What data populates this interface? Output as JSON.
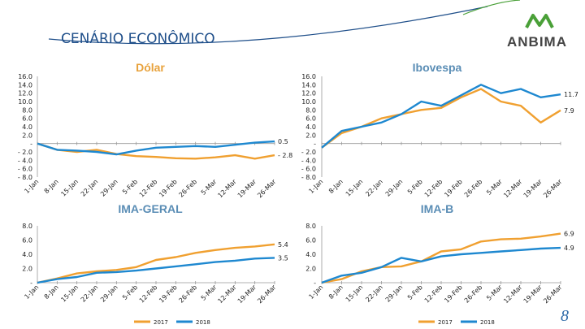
{
  "header": {
    "title": "CENÁRIO ECONÔMICO",
    "logo_text": "ANBIMA",
    "page_number": "8"
  },
  "legend": {
    "label_2017": "2017",
    "label_2018": "2018"
  },
  "colors": {
    "y2017": "#f0a030",
    "y2018": "#1e88d0",
    "title": "#1f4f8a",
    "accent": "#4aa038"
  },
  "chart_data": [
    {
      "type": "line",
      "title": "Dólar",
      "ylim": [
        -8,
        16
      ],
      "y_ticks": [
        "16.0",
        "14.0",
        "12.0",
        "10.0",
        "8.0",
        "6.0",
        "4.0",
        "2.0",
        "-",
        "- 2.0",
        "- 4.0",
        "- 6.0",
        "- 8.0"
      ],
      "categories": [
        "1-Jan",
        "8-Jan",
        "15-Jan",
        "22-Jan",
        "29-Jan",
        "5-Feb",
        "12-Feb",
        "19-Feb",
        "26-Feb",
        "5-Mar",
        "12-Mar",
        "19-Mar",
        "26-Mar"
      ],
      "end_labels": {
        "y2017": "- 2.8",
        "y2018": "0.5"
      },
      "series": [
        {
          "name": "2017",
          "values": [
            0.0,
            -1.5,
            -2.0,
            -1.5,
            -2.5,
            -3.0,
            -3.2,
            -3.5,
            -3.6,
            -3.3,
            -2.8,
            -3.6,
            -2.8
          ]
        },
        {
          "name": "2018",
          "values": [
            0.0,
            -1.5,
            -1.7,
            -2.0,
            -2.6,
            -1.7,
            -1.0,
            -0.8,
            -0.6,
            -0.8,
            -0.3,
            0.2,
            0.5
          ]
        }
      ]
    },
    {
      "type": "line",
      "title": "Ibovespa",
      "ylim": [
        -8,
        16
      ],
      "y_ticks": [
        "16.0",
        "14.0",
        "12.0",
        "10.0",
        "8.0",
        "6.0",
        "4.0",
        "2.0",
        "-",
        "- 2.0",
        "- 4.0",
        "- 6.0",
        "- 8.0"
      ],
      "categories": [
        "1-Jan",
        "8-Jan",
        "15-Jan",
        "22-Jan",
        "29-Jan",
        "5-Feb",
        "12-Feb",
        "19-Feb",
        "26-Feb",
        "5-Mar",
        "12-Mar",
        "19-Mar",
        "26-Mar"
      ],
      "end_labels": {
        "y2017": "7.9",
        "y2018": "11.7"
      },
      "series": [
        {
          "name": "2017",
          "values": [
            -1.0,
            2.5,
            4.0,
            6.0,
            7.0,
            8.0,
            8.5,
            11.0,
            13.0,
            10.0,
            9.0,
            5.0,
            7.9
          ]
        },
        {
          "name": "2018",
          "values": [
            -1.0,
            3.0,
            4.0,
            5.0,
            7.0,
            10.0,
            9.0,
            11.5,
            14.0,
            12.0,
            13.0,
            11.0,
            11.7
          ]
        }
      ]
    },
    {
      "type": "line",
      "title": "IMA-GERAL",
      "ylim": [
        0,
        8
      ],
      "y_ticks": [
        "8.0",
        "6.0",
        "4.0",
        "2.0",
        "-"
      ],
      "categories": [
        "1-Jan",
        "8-Jan",
        "15-Jan",
        "22-Jan",
        "29-Jan",
        "5-Feb",
        "12-Feb",
        "19-Feb",
        "26-Feb",
        "5-Mar",
        "12-Mar",
        "19-Mar",
        "26-Mar"
      ],
      "end_labels": {
        "y2017": "5.4",
        "y2018": "3.5"
      },
      "series": [
        {
          "name": "2017",
          "values": [
            0.0,
            0.6,
            1.3,
            1.6,
            1.8,
            2.2,
            3.2,
            3.6,
            4.2,
            4.6,
            4.9,
            5.1,
            5.4
          ]
        },
        {
          "name": "2018",
          "values": [
            0.0,
            0.5,
            0.8,
            1.4,
            1.5,
            1.7,
            2.0,
            2.3,
            2.6,
            2.9,
            3.1,
            3.4,
            3.5
          ]
        }
      ]
    },
    {
      "type": "line",
      "title": "IMA-B",
      "ylim": [
        0,
        8
      ],
      "y_ticks": [
        "8.0",
        "6.0",
        "4.0",
        "2.0",
        "-"
      ],
      "categories": [
        "1-Jan",
        "8-Jan",
        "15-Jan",
        "22-Jan",
        "29-Jan",
        "5-Feb",
        "12-Feb",
        "19-Feb",
        "26-Feb",
        "5-Mar",
        "12-Mar",
        "19-Mar",
        "26-Mar"
      ],
      "end_labels": {
        "y2017": "6.9",
        "y2018": "4.9"
      },
      "series": [
        {
          "name": "2017",
          "values": [
            0.0,
            0.5,
            1.6,
            2.2,
            2.3,
            3.0,
            4.4,
            4.7,
            5.8,
            6.1,
            6.2,
            6.5,
            6.9
          ]
        },
        {
          "name": "2018",
          "values": [
            0.0,
            1.0,
            1.4,
            2.2,
            3.5,
            3.0,
            3.7,
            4.0,
            4.2,
            4.4,
            4.6,
            4.8,
            4.9
          ]
        }
      ]
    }
  ]
}
